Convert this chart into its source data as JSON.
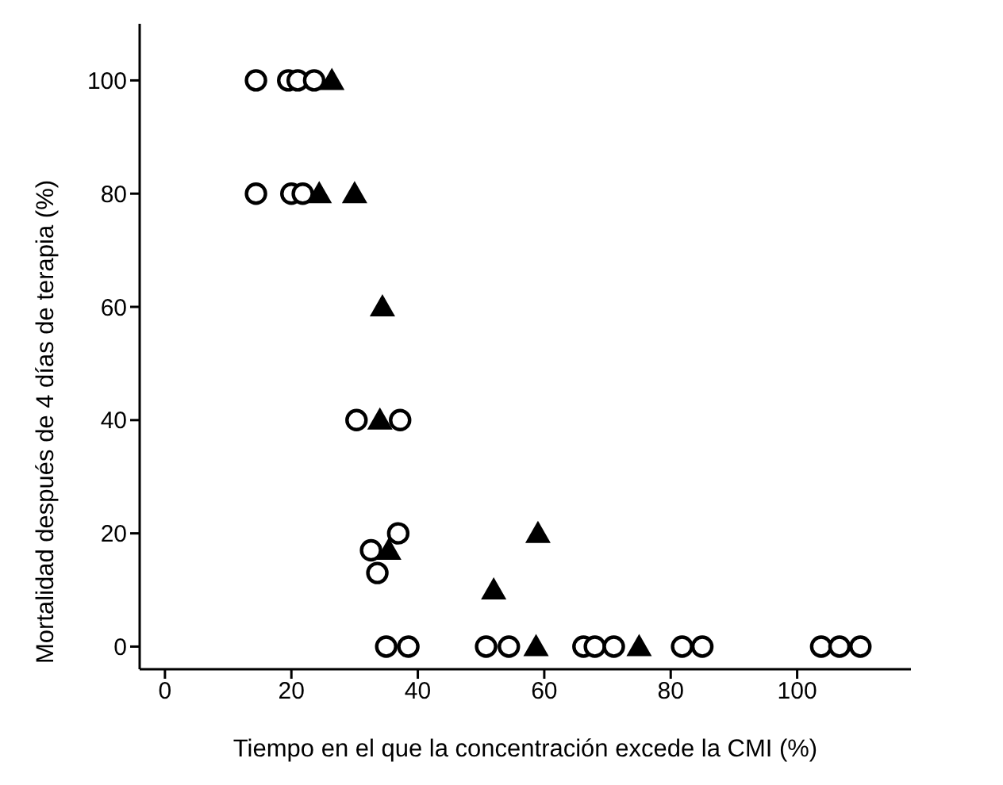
{
  "chart_data": {
    "type": "scatter",
    "xlabel": "Tiempo en el que la concentración excede la CMI (%)",
    "ylabel": "Mortalidad después de 4 días de terapia (%)",
    "xlim": [
      -4,
      118
    ],
    "ylim": [
      -4,
      110
    ],
    "xticks": [
      0,
      20,
      40,
      60,
      80,
      100
    ],
    "yticks": [
      0,
      20,
      40,
      60,
      80,
      100
    ],
    "grid": false,
    "legend": false,
    "series": [
      {
        "color": "#000000",
        "marker": "circle",
        "x": [
          14.4,
          19.5,
          21,
          23.6,
          14.4,
          20,
          21.8,
          30.3,
          37.2,
          36.9,
          32.6,
          33.6,
          35,
          38.5,
          50.8,
          54.4,
          66.2,
          68,
          71,
          81.8,
          85,
          103.8,
          106.7,
          110
        ],
        "values": [
          100,
          100,
          100,
          100,
          80,
          80,
          80,
          40,
          40,
          20,
          17,
          13,
          0,
          0,
          0,
          0,
          0,
          0,
          0,
          0,
          0,
          0,
          0,
          0
        ]
      },
      {
        "color": "#000000",
        "marker": "triangle",
        "x": [
          26.4,
          24.4,
          30,
          34.4,
          34,
          35.4,
          59,
          52,
          58.7,
          75
        ],
        "values": [
          100,
          80,
          80,
          60,
          40,
          17,
          20,
          10,
          0,
          0
        ]
      }
    ]
  }
}
